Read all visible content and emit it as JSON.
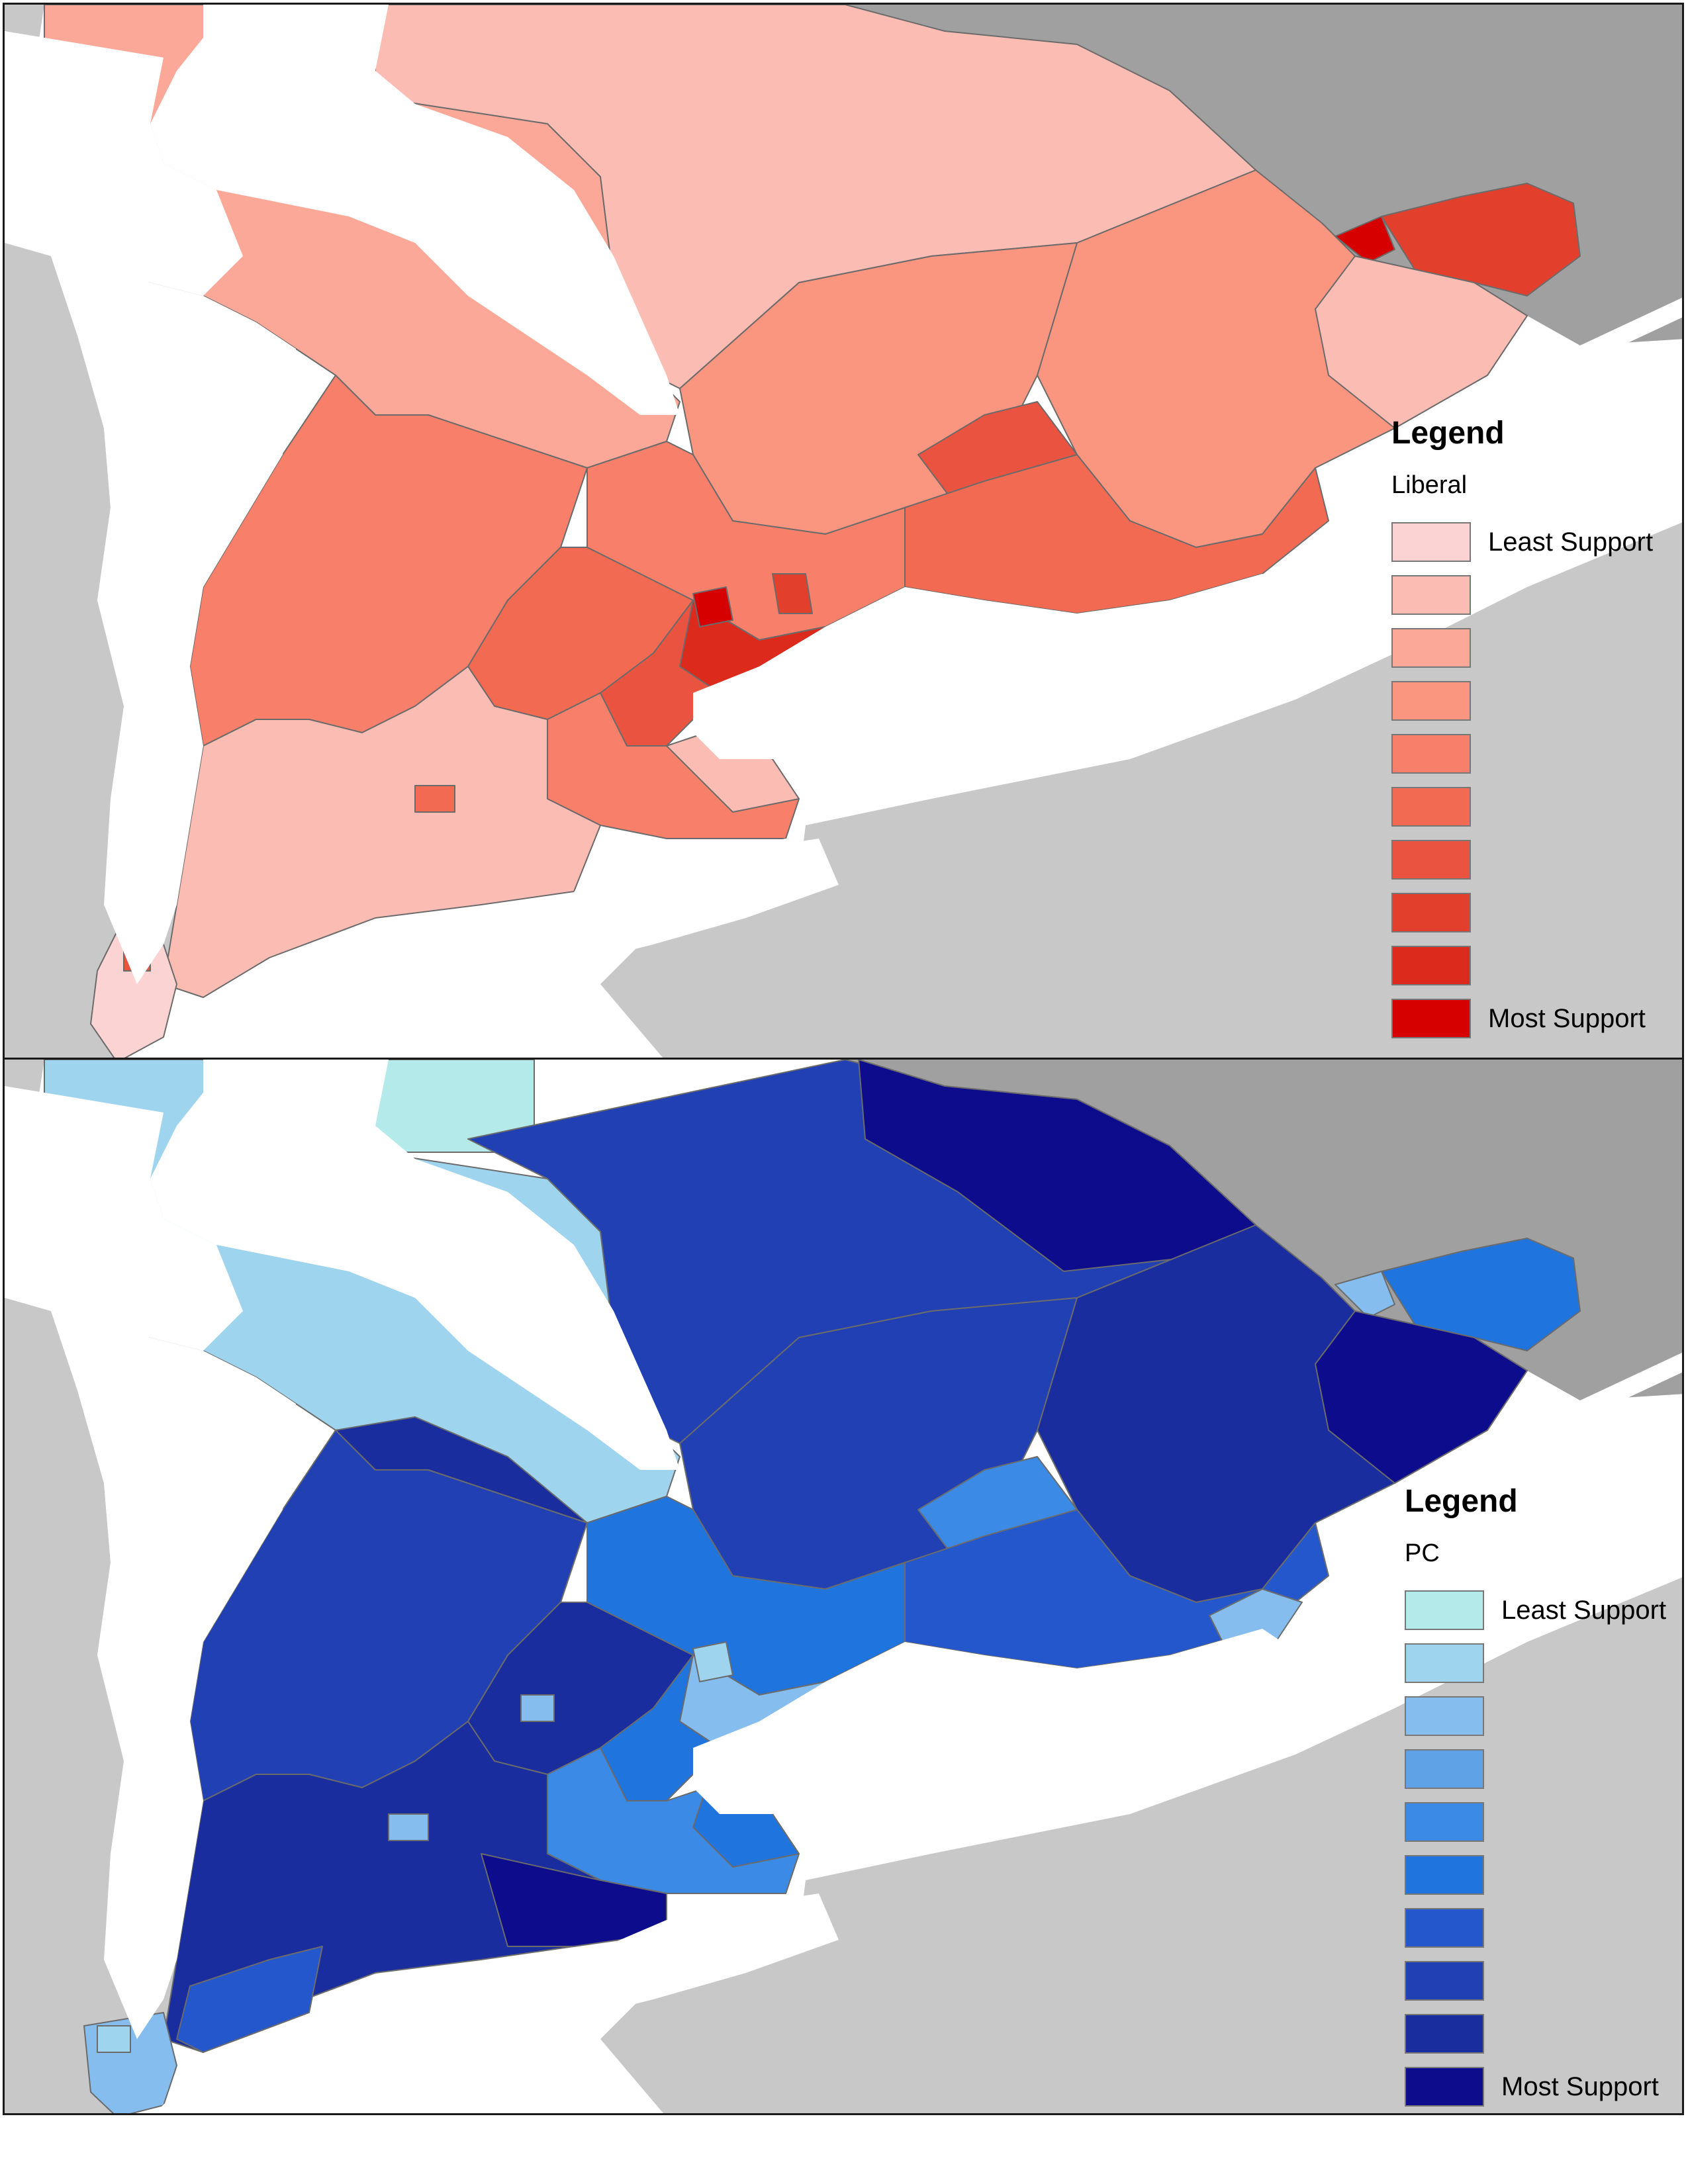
{
  "maps": [
    {
      "id": "liberal",
      "legend": {
        "title": "Legend",
        "layer": "Liberal",
        "least_label": "Least Support",
        "most_label": "Most Support",
        "classes": [
          "#fcd3d3",
          "#fbbcb4",
          "#fba898",
          "#fa9580",
          "#f8806a",
          "#f26a52",
          "#ea5340",
          "#e23f2d",
          "#dc2a1c",
          "#d60000"
        ]
      }
    },
    {
      "id": "pc",
      "legend": {
        "title": "Legend",
        "layer": "PC",
        "least_label": "Least Support",
        "most_label": "Most Support",
        "classes": [
          "#b4eaea",
          "#9fd4ef",
          "#84bdee",
          "#5fa2e6",
          "#3b8ae6",
          "#2074de",
          "#2457cc",
          "#2040b4",
          "#1a2d9e",
          "#0d0c8c"
        ]
      }
    }
  ],
  "colors": {
    "land_outside": "#c8c8c8",
    "land_quebec": "#a0a0a0",
    "water": "#ffffff",
    "boundary": "#6b6b6b"
  }
}
